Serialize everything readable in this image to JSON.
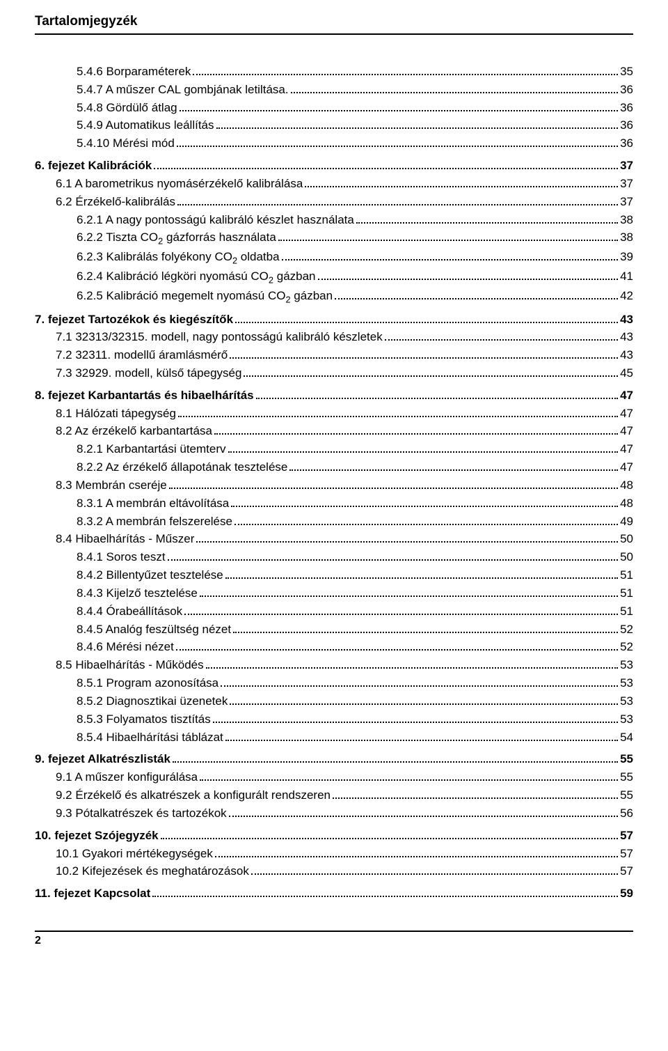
{
  "header": "Tartalomjegyzék",
  "footer_page": "2",
  "entries": [
    {
      "label": "5.4.6 Borparaméterek",
      "page": "35",
      "indent": "lvl-a",
      "bold": false,
      "space": false
    },
    {
      "label": "5.4.7 A műszer CAL gombjának letiltása.",
      "page": "36",
      "indent": "lvl-a",
      "bold": false,
      "space": false
    },
    {
      "label": "5.4.8 Gördülő átlag",
      "page": "36",
      "indent": "lvl-a",
      "bold": false,
      "space": false
    },
    {
      "label": "5.4.9 Automatikus leállítás",
      "page": "36",
      "indent": "lvl-a",
      "bold": false,
      "space": false
    },
    {
      "label": "5.4.10 Mérési mód",
      "page": "36",
      "indent": "lvl-a",
      "bold": false,
      "space": false
    },
    {
      "label": "6. fejezet  Kalibrációk",
      "page": "37",
      "indent": "lvl-root",
      "bold": true,
      "space": true
    },
    {
      "label": "6.1 A barometrikus nyomásérzékelő kalibrálása",
      "page": "37",
      "indent": "lvl-b",
      "bold": false,
      "space": false
    },
    {
      "label": "6.2 Érzékelő-kalibrálás",
      "page": "37",
      "indent": "lvl-b",
      "bold": false,
      "space": false
    },
    {
      "label": "6.2.1 A nagy pontosságú kalibráló készlet használata",
      "page": "38",
      "indent": "lvl-c",
      "bold": false,
      "space": false
    },
    {
      "label": "6.2.2 Tiszta CO<sub>2</sub> gázforrás használata",
      "page": "38",
      "indent": "lvl-c",
      "bold": false,
      "space": false
    },
    {
      "label": "6.2.3 Kalibrálás folyékony CO<sub>2</sub> oldatba",
      "page": "39",
      "indent": "lvl-c",
      "bold": false,
      "space": false
    },
    {
      "label": "6.2.4 Kalibráció légköri nyomású CO<sub>2</sub> gázban",
      "page": "41",
      "indent": "lvl-c",
      "bold": false,
      "space": false
    },
    {
      "label": "6.2.5 Kalibráció megemelt nyomású CO<sub>2</sub> gázban",
      "page": "42",
      "indent": "lvl-c",
      "bold": false,
      "space": false
    },
    {
      "label": "7. fejezet  Tartozékok és kiegészítők",
      "page": "43",
      "indent": "lvl-root",
      "bold": true,
      "space": true
    },
    {
      "label": "7.1 32313/32315. modell, nagy pontosságú kalibráló készletek",
      "page": "43",
      "indent": "lvl-b",
      "bold": false,
      "space": false
    },
    {
      "label": "7.2 32311. modellű áramlásmérő",
      "page": "43",
      "indent": "lvl-b",
      "bold": false,
      "space": false
    },
    {
      "label": "7.3 32929. modell, külső tápegység",
      "page": "45",
      "indent": "lvl-b",
      "bold": false,
      "space": false
    },
    {
      "label": "8. fejezet  Karbantartás és hibaelhárítás",
      "page": "47",
      "indent": "lvl-root",
      "bold": true,
      "space": true
    },
    {
      "label": "8.1 Hálózati tápegység",
      "page": "47",
      "indent": "lvl-b",
      "bold": false,
      "space": false
    },
    {
      "label": "8.2 Az érzékelő karbantartása",
      "page": "47",
      "indent": "lvl-b",
      "bold": false,
      "space": false
    },
    {
      "label": "8.2.1 Karbantartási ütemterv",
      "page": "47",
      "indent": "lvl-c",
      "bold": false,
      "space": false
    },
    {
      "label": "8.2.2 Az érzékelő állapotának tesztelése",
      "page": "47",
      "indent": "lvl-c",
      "bold": false,
      "space": false
    },
    {
      "label": "8.3 Membrán cseréje",
      "page": "48",
      "indent": "lvl-b",
      "bold": false,
      "space": false
    },
    {
      "label": "8.3.1 A membrán eltávolítása",
      "page": "48",
      "indent": "lvl-c",
      "bold": false,
      "space": false
    },
    {
      "label": "8.3.2 A membrán felszerelése",
      "page": "49",
      "indent": "lvl-c",
      "bold": false,
      "space": false
    },
    {
      "label": "8.4 Hibaelhárítás - Műszer",
      "page": "50",
      "indent": "lvl-b",
      "bold": false,
      "space": false
    },
    {
      "label": "8.4.1 Soros teszt",
      "page": "50",
      "indent": "lvl-c",
      "bold": false,
      "space": false
    },
    {
      "label": "8.4.2 Billentyűzet tesztelése",
      "page": "51",
      "indent": "lvl-c",
      "bold": false,
      "space": false
    },
    {
      "label": "8.4.3 Kijelző tesztelése",
      "page": "51",
      "indent": "lvl-c",
      "bold": false,
      "space": false
    },
    {
      "label": "8.4.4 Órabeállítások",
      "page": "51",
      "indent": "lvl-c",
      "bold": false,
      "space": false
    },
    {
      "label": "8.4.5 Analóg feszültség nézet",
      "page": "52",
      "indent": "lvl-c",
      "bold": false,
      "space": false
    },
    {
      "label": "8.4.6 Mérési nézet",
      "page": "52",
      "indent": "lvl-c",
      "bold": false,
      "space": false
    },
    {
      "label": "8.5 Hibaelhárítás - Működés",
      "page": "53",
      "indent": "lvl-b",
      "bold": false,
      "space": false
    },
    {
      "label": "8.5.1 Program azonosítása",
      "page": "53",
      "indent": "lvl-c",
      "bold": false,
      "space": false
    },
    {
      "label": "8.5.2 Diagnosztikai üzenetek",
      "page": "53",
      "indent": "lvl-c",
      "bold": false,
      "space": false
    },
    {
      "label": "8.5.3 Folyamatos tisztítás",
      "page": "53",
      "indent": "lvl-c",
      "bold": false,
      "space": false
    },
    {
      "label": "8.5.4 Hibaelhárítási táblázat",
      "page": "54",
      "indent": "lvl-c",
      "bold": false,
      "space": false
    },
    {
      "label": "9. fejezet  Alkatrészlisták",
      "page": "55",
      "indent": "lvl-root",
      "bold": true,
      "space": true
    },
    {
      "label": "9.1 A műszer konfigurálása",
      "page": "55",
      "indent": "lvl-b",
      "bold": false,
      "space": false
    },
    {
      "label": "9.2 Érzékelő és alkatrészek a konfigurált rendszeren",
      "page": "55",
      "indent": "lvl-b",
      "bold": false,
      "space": false
    },
    {
      "label": "9.3 Pótalkatrészek és tartozékok",
      "page": "56",
      "indent": "lvl-b",
      "bold": false,
      "space": false
    },
    {
      "label": "10. fejezet  Szójegyzék",
      "page": "57",
      "indent": "lvl-root",
      "bold": true,
      "space": true
    },
    {
      "label": "10.1 Gyakori mértékegységek",
      "page": "57",
      "indent": "lvl-b",
      "bold": false,
      "space": false
    },
    {
      "label": "10.2 Kifejezések és meghatározások",
      "page": "57",
      "indent": "lvl-b",
      "bold": false,
      "space": false
    },
    {
      "label": "11. fejezet  Kapcsolat",
      "page": "59",
      "indent": "lvl-root",
      "bold": true,
      "space": true
    }
  ]
}
